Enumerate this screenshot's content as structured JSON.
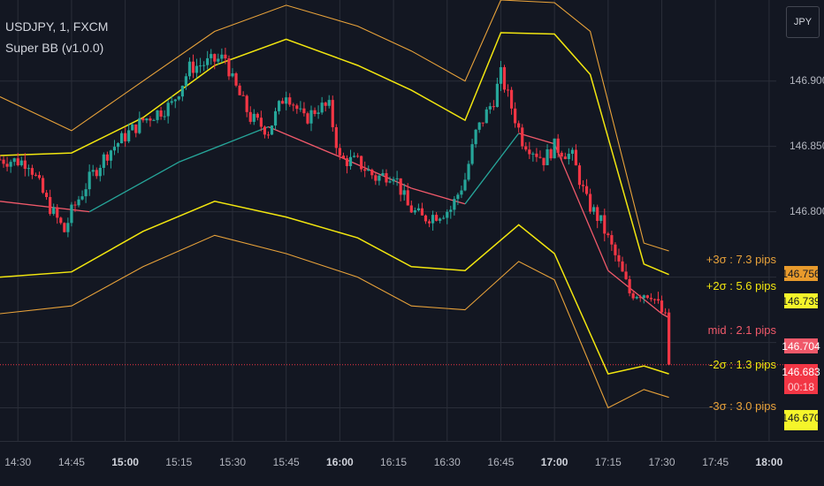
{
  "header": {
    "symbol_line": "USDJPY, 1, FXCM",
    "indicator_line": "Super BB (v1.0.0)"
  },
  "currency_button": "JPY",
  "price_axis": {
    "ticks": [
      "146.900",
      "146.850",
      "146.800"
    ]
  },
  "time_axis": {
    "ticks": [
      {
        "label": "14:30",
        "bold": false
      },
      {
        "label": "14:45",
        "bold": false
      },
      {
        "label": "15:00",
        "bold": true
      },
      {
        "label": "15:15",
        "bold": false
      },
      {
        "label": "15:30",
        "bold": false
      },
      {
        "label": "15:45",
        "bold": false
      },
      {
        "label": "16:00",
        "bold": true
      },
      {
        "label": "16:15",
        "bold": false
      },
      {
        "label": "16:30",
        "bold": false
      },
      {
        "label": "16:45",
        "bold": false
      },
      {
        "label": "17:00",
        "bold": true
      },
      {
        "label": "17:15",
        "bold": false
      },
      {
        "label": "17:30",
        "bold": false
      },
      {
        "label": "17:45",
        "bold": false
      },
      {
        "label": "18:00",
        "bold": true
      }
    ]
  },
  "band_labels": [
    {
      "text": "+3σ :  7.3 pips",
      "color": "#e8a23a"
    },
    {
      "text": "+2σ :  5.6 pips",
      "color": "#f2e60f"
    },
    {
      "text": "mid :  2.1 pips",
      "color": "#f0596a"
    },
    {
      "text": "-2σ :  1.3 pips",
      "color": "#f2e60f"
    },
    {
      "text": "-3σ :  3.0 pips",
      "color": "#e8a23a"
    }
  ],
  "price_tags": [
    {
      "text": "146.756",
      "bg": "#e89a2c",
      "fg": "#131722"
    },
    {
      "text": "146.739",
      "bg": "#f5f52a",
      "fg": "#131722"
    },
    {
      "text": "146.704",
      "bg": "#f0596a",
      "fg": "#ffffff"
    },
    {
      "text": "146.683",
      "bg": "#f23645",
      "fg": "#ffffff"
    },
    {
      "text": "00:18",
      "bg": "#f23645",
      "fg": "#ffcdd2"
    },
    {
      "text": "146.670",
      "bg": "#f5f52a",
      "fg": "#131722"
    }
  ],
  "colors": {
    "background": "#131722",
    "up": "#26a69a",
    "down": "#f23645",
    "mid_up": "#26a69a",
    "mid_down": "#f0596a",
    "band2": "#f2e60f",
    "band3": "#e8a23a",
    "grid": "#2a2e39",
    "last_price_line": "#f23645"
  },
  "chart_data": {
    "type": "candlestick",
    "symbol": "USDJPY",
    "x_range": [
      "14:25",
      "18:02"
    ],
    "y_range": [
      146.624,
      146.962
    ],
    "last_price": 146.683,
    "series": [
      {
        "name": "price",
        "interval_minutes": 1,
        "start": "14:25",
        "end": "17:32",
        "close_path": [
          [
            0,
            146.84
          ],
          [
            8,
            146.838
          ],
          [
            13,
            146.808
          ],
          [
            18,
            146.785
          ],
          [
            20,
            146.8
          ],
          [
            25,
            146.825
          ],
          [
            30,
            146.845
          ],
          [
            35,
            146.858
          ],
          [
            40,
            146.87
          ],
          [
            48,
            146.882
          ],
          [
            53,
            146.91
          ],
          [
            63,
            146.918
          ],
          [
            65,
            146.9
          ],
          [
            70,
            146.872
          ],
          [
            75,
            146.862
          ],
          [
            80,
            146.892
          ],
          [
            85,
            146.87
          ],
          [
            89,
            146.88
          ],
          [
            92,
            146.88
          ],
          [
            95,
            146.84
          ],
          [
            100,
            146.838
          ],
          [
            105,
            146.826
          ],
          [
            110,
            146.83
          ],
          [
            114,
            146.804
          ],
          [
            118,
            146.795
          ],
          [
            122,
            146.798
          ],
          [
            126,
            146.802
          ],
          [
            130,
            146.825
          ],
          [
            133,
            146.86
          ],
          [
            138,
            146.886
          ],
          [
            140,
            146.905
          ],
          [
            143,
            146.88
          ],
          [
            146,
            146.855
          ],
          [
            152,
            146.84
          ],
          [
            155,
            146.85
          ],
          [
            160,
            146.842
          ],
          [
            164,
            146.808
          ],
          [
            168,
            146.792
          ],
          [
            172,
            146.766
          ],
          [
            176,
            146.738
          ],
          [
            182,
            146.738
          ],
          [
            186,
            146.718
          ],
          [
            187,
            146.684
          ]
        ]
      },
      {
        "name": "mid",
        "points": [
          [
            14.42,
            146.808
          ],
          [
            14.83,
            146.8
          ],
          [
            15.25,
            146.838
          ],
          [
            15.67,
            146.865
          ],
          [
            16.0,
            146.842
          ],
          [
            16.33,
            146.818
          ],
          [
            16.58,
            146.806
          ],
          [
            16.83,
            146.86
          ],
          [
            17.0,
            146.852
          ],
          [
            17.25,
            146.755
          ],
          [
            17.5,
            146.722
          ],
          [
            17.53,
            146.719
          ]
        ]
      },
      {
        "name": "+2σ",
        "points": [
          [
            14.42,
            146.843
          ],
          [
            14.75,
            146.845
          ],
          [
            15.08,
            146.872
          ],
          [
            15.42,
            146.912
          ],
          [
            15.75,
            146.932
          ],
          [
            16.08,
            146.912
          ],
          [
            16.33,
            146.893
          ],
          [
            16.58,
            146.87
          ],
          [
            16.75,
            146.937
          ],
          [
            17.0,
            146.936
          ],
          [
            17.17,
            146.905
          ],
          [
            17.42,
            146.76
          ],
          [
            17.53,
            146.752
          ]
        ]
      },
      {
        "name": "+3σ",
        "points": [
          [
            14.42,
            146.888
          ],
          [
            14.75,
            146.862
          ],
          [
            15.08,
            146.9
          ],
          [
            15.42,
            146.938
          ],
          [
            15.75,
            146.958
          ],
          [
            16.08,
            146.942
          ],
          [
            16.33,
            146.923
          ],
          [
            16.58,
            146.9
          ],
          [
            16.75,
            146.962
          ],
          [
            17.0,
            146.96
          ],
          [
            17.17,
            146.938
          ],
          [
            17.42,
            146.776
          ],
          [
            17.53,
            146.77
          ]
        ]
      },
      {
        "name": "-2σ",
        "points": [
          [
            14.42,
            146.75
          ],
          [
            14.75,
            146.754
          ],
          [
            15.08,
            146.785
          ],
          [
            15.42,
            146.808
          ],
          [
            15.75,
            146.796
          ],
          [
            16.08,
            146.78
          ],
          [
            16.33,
            146.758
          ],
          [
            16.58,
            146.755
          ],
          [
            16.83,
            146.79
          ],
          [
            17.0,
            146.768
          ],
          [
            17.25,
            146.676
          ],
          [
            17.42,
            146.682
          ],
          [
            17.53,
            146.676
          ]
        ]
      },
      {
        "name": "-3σ",
        "points": [
          [
            14.42,
            146.722
          ],
          [
            14.75,
            146.728
          ],
          [
            15.08,
            146.758
          ],
          [
            15.42,
            146.782
          ],
          [
            15.75,
            146.768
          ],
          [
            16.08,
            146.75
          ],
          [
            16.33,
            146.728
          ],
          [
            16.58,
            146.725
          ],
          [
            16.83,
            146.762
          ],
          [
            17.0,
            146.748
          ],
          [
            17.25,
            146.65
          ],
          [
            17.42,
            146.664
          ],
          [
            17.53,
            146.658
          ]
        ]
      }
    ]
  }
}
